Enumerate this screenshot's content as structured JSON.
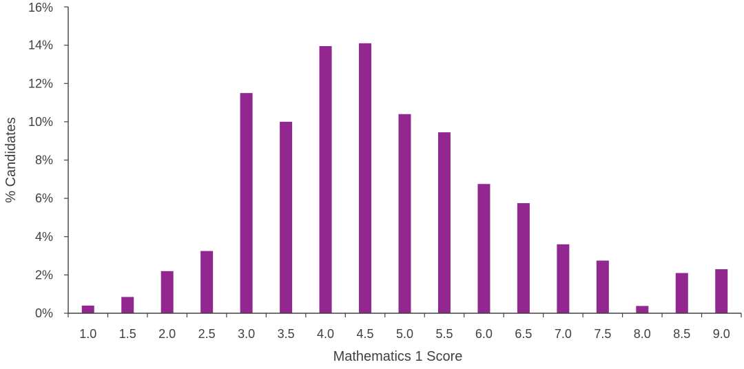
{
  "chart_data": {
    "type": "bar",
    "title": "",
    "xlabel": "Mathematics 1 Score",
    "ylabel": "% Candidates",
    "categories": [
      "1.0",
      "1.5",
      "2.0",
      "2.5",
      "3.0",
      "3.5",
      "4.0",
      "4.5",
      "5.0",
      "5.5",
      "6.0",
      "6.5",
      "7.0",
      "7.5",
      "8.0",
      "8.5",
      "9.0"
    ],
    "values": [
      0.4,
      0.85,
      2.2,
      3.25,
      11.5,
      10.0,
      13.95,
      14.1,
      10.4,
      9.45,
      6.75,
      5.75,
      3.6,
      2.75,
      0.38,
      2.1,
      2.3
    ],
    "ylim": [
      0,
      16
    ],
    "y_ticks": [
      0,
      2,
      4,
      6,
      8,
      10,
      12,
      14,
      16
    ],
    "y_tick_labels": [
      "0%",
      "2%",
      "4%",
      "6%",
      "8%",
      "10%",
      "12%",
      "14%",
      "16%"
    ],
    "grid": false,
    "legend": "none",
    "colors": {
      "bar": "#92278f",
      "axis": "#404040"
    }
  }
}
